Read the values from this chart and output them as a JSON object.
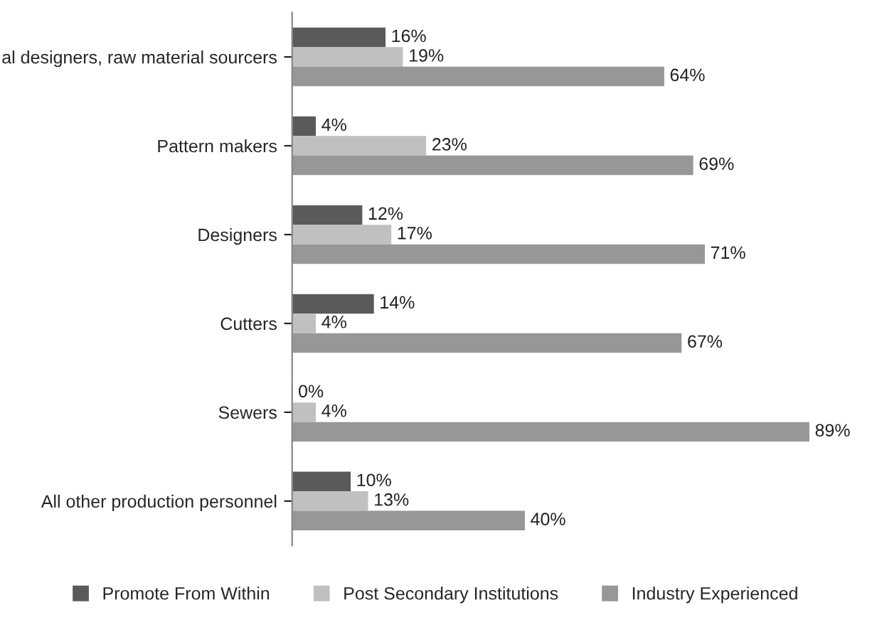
{
  "chart_data": {
    "type": "bar",
    "orientation": "horizontal",
    "legend": "bottom",
    "grid": false,
    "categories": [
      "al designers, raw material sourcers",
      "Pattern makers",
      "Designers",
      "Cutters",
      "Sewers",
      "All other production personnel"
    ],
    "series": [
      {
        "name": "Promote From Within",
        "color": "#5a5a5a",
        "values": [
          16,
          4,
          12,
          14,
          0,
          10
        ],
        "value_labels": [
          "16%",
          "4%",
          "12%",
          "14%",
          "0%",
          "10%"
        ]
      },
      {
        "name": "Post Secondary Institutions",
        "color": "#c0c0c0",
        "values": [
          19,
          23,
          17,
          4,
          4,
          13
        ],
        "value_labels": [
          "19%",
          "23%",
          "17%",
          "4%",
          "4%",
          "13%"
        ]
      },
      {
        "name": "Industry Experienced",
        "color": "#979797",
        "values": [
          64,
          69,
          71,
          67,
          89,
          40
        ],
        "value_labels": [
          "64%",
          "69%",
          "71%",
          "67%",
          "89%",
          "40%"
        ]
      }
    ]
  }
}
